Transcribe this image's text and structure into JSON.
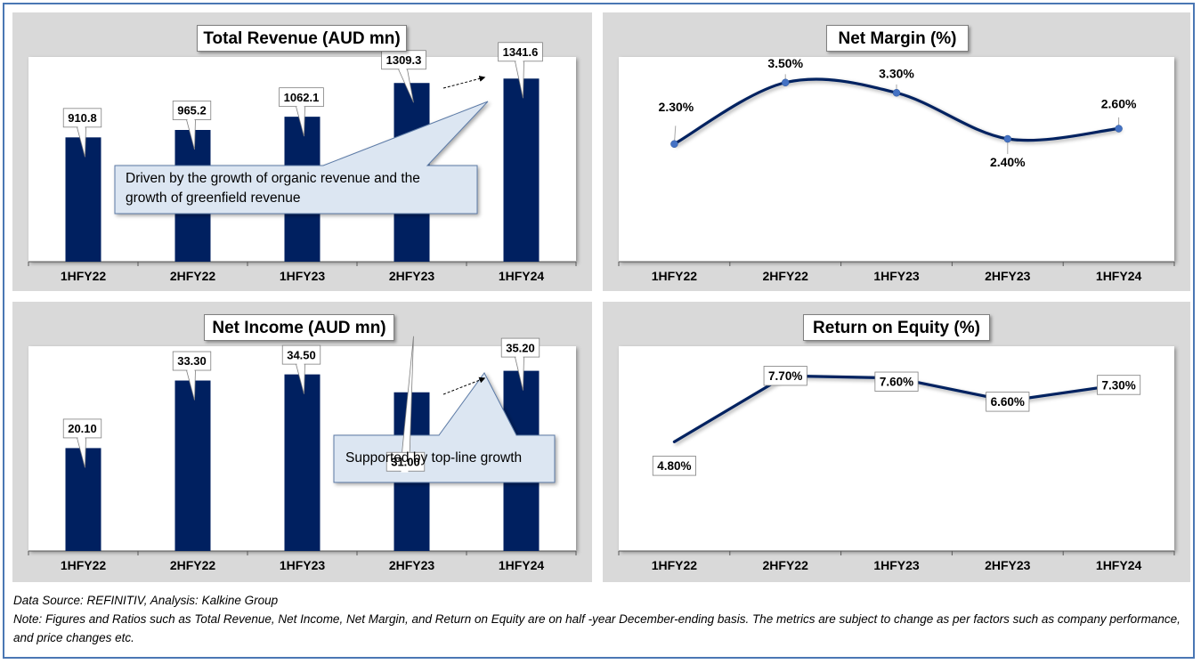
{
  "colors": {
    "bar": "#002060",
    "line": "#002060",
    "point": "#4472c4",
    "panel": "#d9d9d9",
    "border": "#4a77b4"
  },
  "chart_data": [
    {
      "type": "bar",
      "title": "Total Revenue (AUD mn)",
      "categories": [
        "1HFY22",
        "2HFY22",
        "1HFY23",
        "2HFY23",
        "1HFY24"
      ],
      "values": [
        910.8,
        965.2,
        1062.1,
        1309.3,
        1341.6
      ],
      "labels": [
        "910.8",
        "965.2",
        "1062.1",
        "1309.3",
        "1341.6"
      ],
      "ylim": [
        0,
        1500
      ],
      "annotation": "Driven by the growth of organic revenue and the growth of greenfield revenue"
    },
    {
      "type": "line",
      "title": "Net Margin (%)",
      "categories": [
        "1HFY22",
        "2HFY22",
        "1HFY23",
        "2HFY23",
        "1HFY24"
      ],
      "values": [
        2.3,
        3.5,
        3.3,
        2.4,
        2.6
      ],
      "labels": [
        "2.30%",
        "3.50%",
        "3.30%",
        "2.40%",
        "2.60%"
      ],
      "ylim": [
        0,
        4
      ],
      "smooth": true
    },
    {
      "type": "bar",
      "title": "Net Income (AUD mn)",
      "categories": [
        "1HFY22",
        "2HFY22",
        "1HFY23",
        "2HFY23",
        "1HFY24"
      ],
      "values": [
        20.1,
        33.3,
        34.5,
        31.0,
        35.2
      ],
      "labels": [
        "20.10",
        "33.30",
        "34.50",
        "31.00",
        "35.20"
      ],
      "ylim": [
        0,
        40
      ],
      "annotation": "Supported by top-line growth"
    },
    {
      "type": "line",
      "title": "Return on Equity (%)",
      "categories": [
        "1HFY22",
        "2HFY22",
        "1HFY23",
        "2HFY23",
        "1HFY24"
      ],
      "values": [
        4.8,
        7.7,
        7.6,
        6.6,
        7.3
      ],
      "labels": [
        "4.80%",
        "7.70%",
        "7.60%",
        "6.60%",
        "7.30%"
      ],
      "ylim": [
        0,
        9
      ],
      "smooth": false
    }
  ],
  "footer": {
    "source": "Data Source: REFINITIV, Analysis: Kalkine Group",
    "note": "Note: Figures and Ratios such as Total Revenue, Net Income, Net Margin, and Return on Equity are on half -year December-ending basis. The metrics are subject to change as per factors such as company performance, and price changes etc."
  }
}
